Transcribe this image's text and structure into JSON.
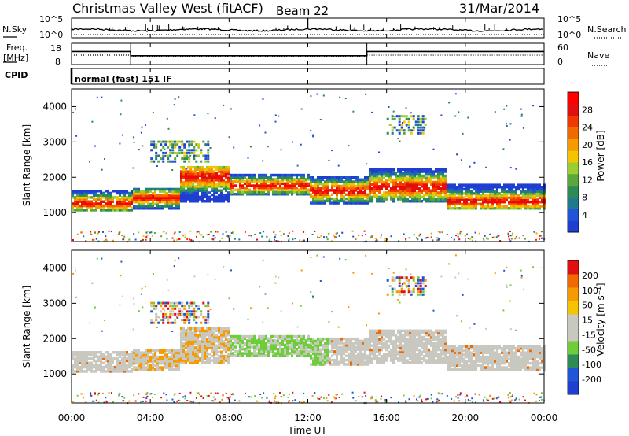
{
  "header": {
    "site": "Christmas Valley West (fitACF)",
    "beam": "Beam 22",
    "date": "31/Mar/2014"
  },
  "noise_panel": {
    "left_label": "N.Sky",
    "right_label": "N.Search",
    "left_ticks": [
      "10^5",
      "10^0"
    ],
    "right_ticks": [
      "10^5",
      "10^0"
    ]
  },
  "freq_panel": {
    "left_label_line1": "Freq.",
    "left_label_line2": "[MHz]",
    "left_ticks": [
      "18",
      "8"
    ],
    "right_label": "Nave",
    "right_ticks": [
      "60",
      "0"
    ]
  },
  "cpid_panel": {
    "label": "CPID",
    "mode": "normal (fast) 151 IF"
  },
  "colors": {
    "power_scale": [
      "#1f3fd0",
      "#2155d8",
      "#1f7a8c",
      "#2e8b57",
      "#5aa83b",
      "#9acd32",
      "#f5c400",
      "#f59a00",
      "#f06a00",
      "#ee3a00",
      "#e01010",
      "#ff0000"
    ],
    "velocity_scale": [
      "#e01010",
      "#f06a00",
      "#f59a00",
      "#f5c400",
      "#c8c8c0",
      "#c8c8c0",
      "#6dce3a",
      "#2e8b57",
      "#2155d8",
      "#1f3fd0"
    ]
  },
  "chart_data": [
    {
      "type": "heatmap",
      "name": "power",
      "ylabel": "Slant Range [km]",
      "ylim": [
        180,
        4500
      ],
      "yticks": [
        "1000",
        "2000",
        "3000",
        "4000"
      ],
      "colorbar_label": "Power [dB]",
      "colorbar_ticks": [
        "4",
        "8",
        "12",
        "16",
        "20",
        "24",
        "28"
      ],
      "colorbar_range": [
        0,
        32
      ],
      "bands": [
        {
          "t_start": 0.0,
          "t_end": 3.0,
          "r_low": 1050,
          "r_high": 1650,
          "core": 1250
        },
        {
          "t_start": 3.0,
          "t_end": 5.5,
          "r_low": 1100,
          "r_high": 1700,
          "core": 1400
        },
        {
          "t_start": 5.5,
          "t_end": 8.0,
          "r_low": 1300,
          "r_high": 2300,
          "core": 2000
        },
        {
          "t_start": 8.0,
          "t_end": 12.0,
          "r_low": 1500,
          "r_high": 2100,
          "core": 1750
        },
        {
          "t_start": 12.0,
          "t_end": 15.0,
          "r_low": 1250,
          "r_high": 2000,
          "core": 1600
        },
        {
          "t_start": 15.0,
          "t_end": 19.0,
          "r_low": 1300,
          "r_high": 2250,
          "core": 1700
        },
        {
          "t_start": 19.0,
          "t_end": 24.0,
          "r_low": 1100,
          "r_high": 1800,
          "core": 1300
        }
      ],
      "upper_patches": [
        {
          "t_start": 4.0,
          "t_end": 7.0,
          "r_low": 2400,
          "r_high": 3000
        },
        {
          "t_start": 16.0,
          "t_end": 18.0,
          "r_low": 3200,
          "r_high": 3700
        }
      ]
    },
    {
      "type": "heatmap",
      "name": "velocity",
      "ylabel": "Slant Range [km]",
      "ylim": [
        180,
        4500
      ],
      "yticks": [
        "1000",
        "2000",
        "3000",
        "4000"
      ],
      "colorbar_label": "Velocity [m s⁻¹]",
      "colorbar_ticks": [
        "200",
        "100",
        "50",
        "15",
        "-15",
        "-50",
        "-100",
        "-200"
      ],
      "colorbar_range": [
        -250,
        250
      ]
    }
  ],
  "x_axis": {
    "label": "Time UT",
    "xlim": [
      0,
      24
    ],
    "ticks": [
      "00:00",
      "04:00",
      "08:00",
      "12:00",
      "16:00",
      "20:00",
      "00:00"
    ]
  }
}
